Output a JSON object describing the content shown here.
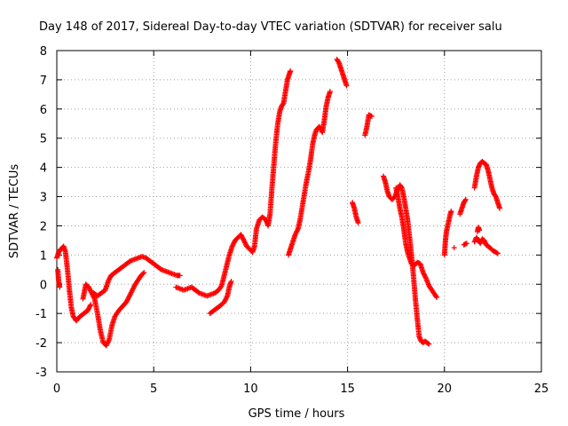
{
  "chart_data": {
    "type": "scatter",
    "title": "Day 148 of 2017, Sidereal Day-to-day VTEC variation (SDTVAR) for receiver salu",
    "xlabel": "GPS time / hours",
    "ylabel": "SDTVAR / TECUs",
    "xlim": [
      0,
      25
    ],
    "ylim": [
      -3,
      8
    ],
    "x_ticks": [
      0,
      5,
      10,
      15,
      20,
      25
    ],
    "y_ticks": [
      -3,
      -2,
      -1,
      0,
      1,
      2,
      3,
      4,
      5,
      6,
      7,
      8
    ],
    "grid": true,
    "marker": "plus",
    "color": "#ff0000",
    "series": [
      {
        "segments": [
          [
            [
              0.0,
              0.9
            ],
            [
              0.1,
              1.1
            ],
            [
              0.2,
              1.2
            ],
            [
              0.35,
              1.3
            ],
            [
              0.45,
              1.1
            ],
            [
              0.55,
              0.5
            ],
            [
              0.65,
              -0.2
            ],
            [
              0.75,
              -0.8
            ],
            [
              0.85,
              -1.1
            ],
            [
              1.0,
              -1.25
            ],
            [
              1.2,
              -1.1
            ],
            [
              1.4,
              -1.0
            ],
            [
              1.6,
              -0.9
            ],
            [
              1.75,
              -0.7
            ]
          ],
          [
            [
              0.05,
              0.5
            ],
            [
              0.1,
              0.1
            ],
            [
              0.15,
              -0.1
            ]
          ],
          [
            [
              1.35,
              -0.5
            ],
            [
              1.5,
              0.0
            ],
            [
              1.65,
              -0.1
            ],
            [
              1.8,
              -0.3
            ],
            [
              1.95,
              -0.5
            ],
            [
              2.1,
              -1.0
            ],
            [
              2.25,
              -1.6
            ],
            [
              2.4,
              -2.0
            ],
            [
              2.55,
              -2.1
            ],
            [
              2.7,
              -1.9
            ],
            [
              2.85,
              -1.4
            ],
            [
              3.0,
              -1.1
            ],
            [
              3.2,
              -0.9
            ],
            [
              3.4,
              -0.75
            ],
            [
              3.6,
              -0.6
            ],
            [
              3.75,
              -0.4
            ],
            [
              3.9,
              -0.2
            ],
            [
              4.05,
              0.0
            ],
            [
              4.2,
              0.15
            ],
            [
              4.35,
              0.3
            ],
            [
              4.5,
              0.4
            ]
          ],
          [
            [
              1.9,
              -0.3
            ],
            [
              2.1,
              -0.4
            ],
            [
              2.3,
              -0.3
            ],
            [
              2.5,
              -0.2
            ],
            [
              2.65,
              0.1
            ],
            [
              2.8,
              0.3
            ],
            [
              3.0,
              0.4
            ],
            [
              3.2,
              0.5
            ],
            [
              3.4,
              0.6
            ],
            [
              3.6,
              0.7
            ],
            [
              3.8,
              0.8
            ],
            [
              4.0,
              0.85
            ],
            [
              4.2,
              0.9
            ],
            [
              4.4,
              0.95
            ],
            [
              4.6,
              0.9
            ],
            [
              4.8,
              0.8
            ],
            [
              5.0,
              0.7
            ],
            [
              5.2,
              0.6
            ],
            [
              5.4,
              0.5
            ],
            [
              5.6,
              0.45
            ],
            [
              5.8,
              0.4
            ],
            [
              6.0,
              0.35
            ],
            [
              6.2,
              0.3
            ],
            [
              6.35,
              0.3
            ]
          ],
          [
            [
              6.15,
              -0.1
            ],
            [
              6.35,
              -0.15
            ],
            [
              6.55,
              -0.2
            ],
            [
              6.75,
              -0.15
            ],
            [
              6.95,
              -0.1
            ],
            [
              7.15,
              -0.2
            ],
            [
              7.35,
              -0.3
            ],
            [
              7.55,
              -0.35
            ],
            [
              7.75,
              -0.4
            ],
            [
              7.95,
              -0.35
            ],
            [
              8.15,
              -0.3
            ],
            [
              8.35,
              -0.2
            ],
            [
              8.5,
              -0.05
            ],
            [
              8.6,
              0.2
            ],
            [
              8.75,
              0.6
            ],
            [
              8.9,
              1.0
            ],
            [
              9.05,
              1.3
            ],
            [
              9.2,
              1.5
            ],
            [
              9.35,
              1.6
            ],
            [
              9.5,
              1.7
            ],
            [
              9.65,
              1.5
            ],
            [
              9.8,
              1.3
            ],
            [
              9.95,
              1.2
            ],
            [
              10.1,
              1.1
            ],
            [
              10.2,
              1.3
            ],
            [
              10.3,
              1.9
            ],
            [
              10.45,
              2.2
            ],
            [
              10.6,
              2.3
            ],
            [
              10.8,
              2.2
            ],
            [
              10.9,
              2.0
            ],
            [
              11.0,
              2.4
            ],
            [
              11.1,
              3.3
            ],
            [
              11.2,
              4.1
            ],
            [
              11.3,
              4.9
            ],
            [
              11.4,
              5.5
            ],
            [
              11.5,
              5.9
            ],
            [
              11.6,
              6.1
            ],
            [
              11.7,
              6.2
            ],
            [
              11.8,
              6.6
            ],
            [
              11.9,
              7.0
            ],
            [
              12.0,
              7.2
            ],
            [
              12.05,
              7.3
            ]
          ],
          [
            [
              7.9,
              -1.0
            ],
            [
              8.1,
              -0.9
            ],
            [
              8.3,
              -0.8
            ],
            [
              8.5,
              -0.7
            ],
            [
              8.65,
              -0.6
            ],
            [
              8.8,
              -0.4
            ],
            [
              8.9,
              -0.1
            ],
            [
              9.0,
              0.1
            ]
          ],
          [
            [
              11.95,
              1.0
            ],
            [
              12.05,
              1.2
            ],
            [
              12.15,
              1.4
            ],
            [
              12.3,
              1.7
            ],
            [
              12.45,
              1.9
            ],
            [
              12.55,
              2.2
            ],
            [
              12.7,
              2.8
            ],
            [
              12.85,
              3.4
            ],
            [
              13.0,
              3.9
            ],
            [
              13.1,
              4.3
            ],
            [
              13.2,
              4.8
            ],
            [
              13.3,
              5.1
            ],
            [
              13.4,
              5.3
            ],
            [
              13.55,
              5.4
            ],
            [
              13.7,
              5.2
            ],
            [
              13.8,
              5.6
            ],
            [
              13.9,
              6.1
            ],
            [
              14.0,
              6.4
            ],
            [
              14.1,
              6.6
            ]
          ],
          [
            [
              14.45,
              7.7
            ],
            [
              14.55,
              7.6
            ],
            [
              14.65,
              7.4
            ],
            [
              14.75,
              7.2
            ],
            [
              14.85,
              7.0
            ],
            [
              14.95,
              6.8
            ]
          ],
          [
            [
              15.25,
              2.8
            ],
            [
              15.35,
              2.6
            ],
            [
              15.45,
              2.3
            ],
            [
              15.55,
              2.1
            ]
          ],
          [
            [
              15.9,
              5.1
            ],
            [
              16.0,
              5.4
            ],
            [
              16.1,
              5.8
            ],
            [
              16.25,
              5.75
            ]
          ],
          [
            [
              16.85,
              3.7
            ],
            [
              16.95,
              3.5
            ],
            [
              17.05,
              3.2
            ],
            [
              17.15,
              3.0
            ],
            [
              17.3,
              2.9
            ],
            [
              17.45,
              3.0
            ],
            [
              17.55,
              3.2
            ],
            [
              17.7,
              3.4
            ],
            [
              17.8,
              3.3
            ],
            [
              17.9,
              3.0
            ],
            [
              18.0,
              2.6
            ],
            [
              18.1,
              2.2
            ],
            [
              18.2,
              1.6
            ],
            [
              18.3,
              1.0
            ],
            [
              18.4,
              0.3
            ],
            [
              18.5,
              -0.5
            ],
            [
              18.6,
              -1.2
            ],
            [
              18.7,
              -1.8
            ],
            [
              18.8,
              -1.95
            ],
            [
              18.9,
              -2.0
            ],
            [
              19.0,
              -1.95
            ],
            [
              19.1,
              -2.0
            ],
            [
              19.2,
              -2.05
            ]
          ],
          [
            [
              17.5,
              3.3
            ],
            [
              17.6,
              3.0
            ],
            [
              17.7,
              2.6
            ],
            [
              17.8,
              2.3
            ],
            [
              17.9,
              1.9
            ],
            [
              18.0,
              1.4
            ],
            [
              18.1,
              1.1
            ],
            [
              18.2,
              0.9
            ],
            [
              18.3,
              0.7
            ],
            [
              18.45,
              0.65
            ],
            [
              18.6,
              0.75
            ],
            [
              18.75,
              0.7
            ],
            [
              18.9,
              0.4
            ],
            [
              19.05,
              0.2
            ],
            [
              19.2,
              -0.05
            ],
            [
              19.35,
              -0.2
            ],
            [
              19.5,
              -0.35
            ],
            [
              19.6,
              -0.45
            ]
          ],
          [
            [
              20.0,
              1.0
            ],
            [
              20.05,
              1.5
            ],
            [
              20.1,
              1.8
            ],
            [
              20.2,
              2.1
            ],
            [
              20.3,
              2.4
            ],
            [
              20.35,
              2.5
            ]
          ],
          [
            [
              20.5,
              1.25
            ]
          ],
          [
            [
              20.8,
              2.4
            ],
            [
              20.9,
              2.6
            ],
            [
              21.0,
              2.8
            ],
            [
              21.1,
              2.9
            ]
          ],
          [
            [
              21.0,
              1.35
            ],
            [
              21.15,
              1.4
            ]
          ],
          [
            [
              21.55,
              1.45
            ],
            [
              21.65,
              1.6
            ],
            [
              21.75,
              1.5
            ],
            [
              21.85,
              1.4
            ],
            [
              21.95,
              1.55
            ],
            [
              22.05,
              1.5
            ],
            [
              22.15,
              1.35
            ],
            [
              22.25,
              1.3
            ],
            [
              22.35,
              1.25
            ],
            [
              22.5,
              1.15
            ],
            [
              22.65,
              1.1
            ],
            [
              22.75,
              1.05
            ]
          ],
          [
            [
              21.55,
              3.3
            ],
            [
              21.65,
              3.7
            ],
            [
              21.75,
              4.0
            ],
            [
              21.85,
              4.15
            ],
            [
              21.95,
              4.2
            ],
            [
              22.05,
              4.15
            ],
            [
              22.15,
              4.1
            ],
            [
              22.25,
              3.9
            ],
            [
              22.35,
              3.6
            ],
            [
              22.45,
              3.3
            ],
            [
              22.55,
              3.1
            ],
            [
              22.65,
              3.0
            ],
            [
              22.75,
              2.8
            ],
            [
              22.85,
              2.6
            ]
          ],
          [
            [
              21.7,
              1.8
            ],
            [
              21.75,
              1.95
            ],
            [
              21.8,
              1.85
            ]
          ]
        ]
      }
    ]
  }
}
